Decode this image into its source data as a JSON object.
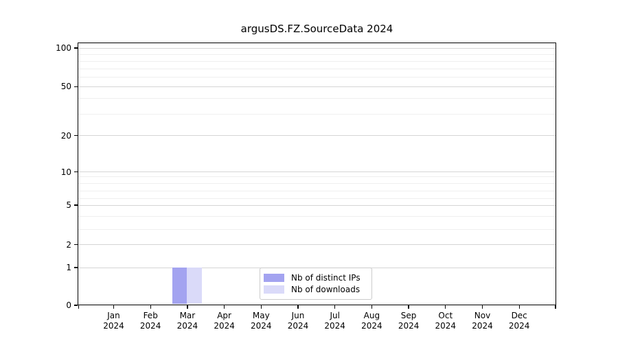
{
  "chart_data": {
    "type": "bar",
    "title": "argusDS.FZ.SourceData 2024",
    "categories": [
      "Jan 2024",
      "Feb 2024",
      "Mar 2024",
      "Apr 2024",
      "May 2024",
      "Jun 2024",
      "Jul 2024",
      "Aug 2024",
      "Sep 2024",
      "Oct 2024",
      "Nov 2024",
      "Dec 2024"
    ],
    "series": [
      {
        "name": "Nb of distinct IPs",
        "color": "#a3a3f0",
        "values": [
          0,
          0,
          1,
          0,
          0,
          0,
          0,
          0,
          0,
          0,
          0,
          0
        ]
      },
      {
        "name": "Nb of downloads",
        "color": "#dadaf9",
        "values": [
          0,
          0,
          1,
          0,
          0,
          0,
          0,
          0,
          0,
          0,
          0,
          0
        ]
      }
    ],
    "y_axis": {
      "scale": "symlog",
      "tick_labels": [
        "100",
        "50",
        "20",
        "10",
        "5",
        "2",
        "1",
        "0"
      ],
      "tick_values": [
        100,
        50,
        20,
        10,
        5,
        2,
        1,
        0
      ],
      "ylim": [
        0,
        110
      ]
    },
    "x_axis": {
      "tick_label_line2": "2024"
    },
    "legend": {
      "location": "lower center, inside plot",
      "entries": [
        "Nb of distinct IPs",
        "Nb of downloads"
      ]
    },
    "grid": {
      "major": true,
      "minor": true
    }
  }
}
